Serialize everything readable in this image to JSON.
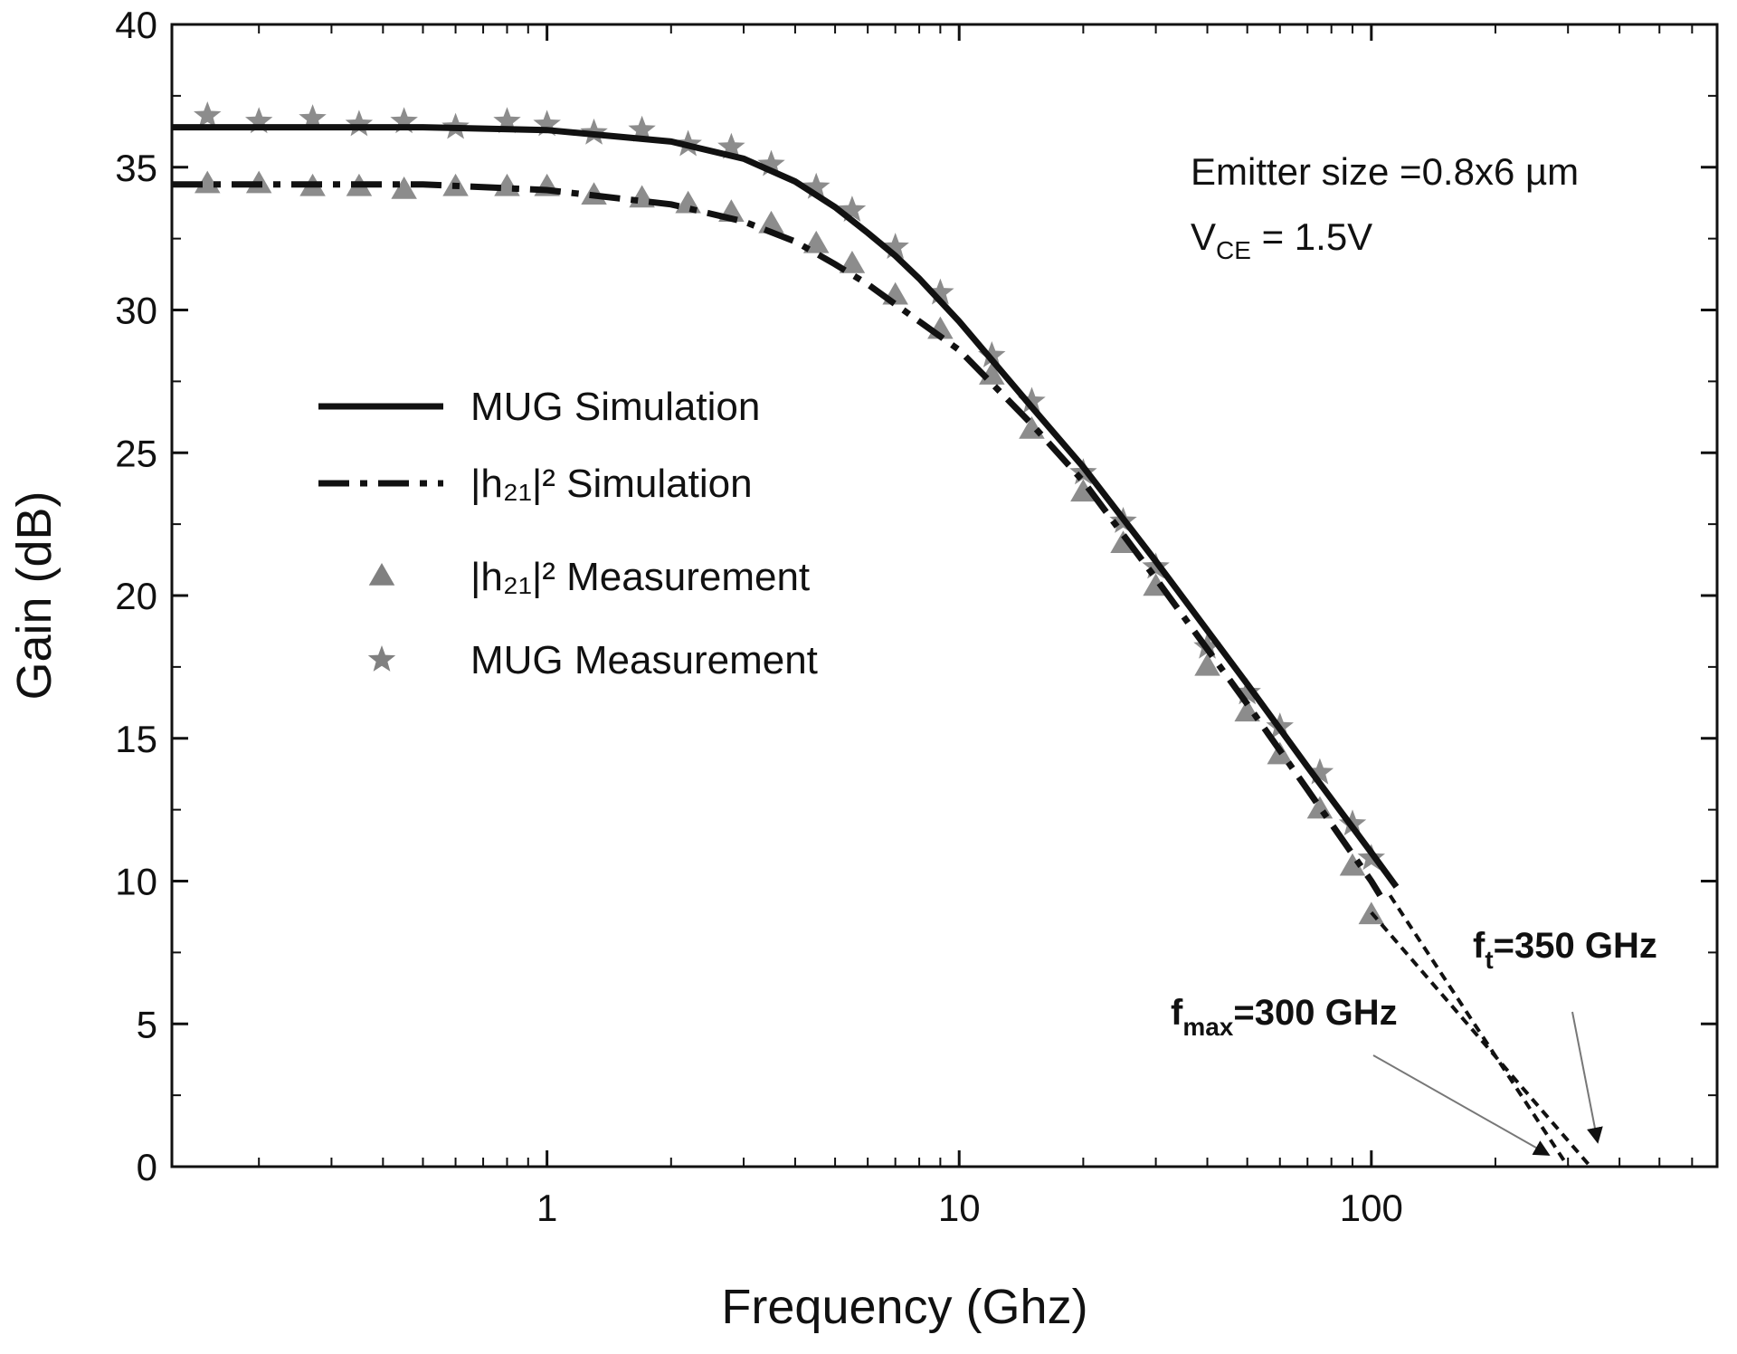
{
  "chart_data": {
    "type": "line",
    "xlabel": "Frequency (Ghz)",
    "ylabel": "Gain (dB)",
    "xscale": "log",
    "xlim": [
      0.123,
      690
    ],
    "xticks": [
      1,
      10,
      100
    ],
    "xminorticks": [
      0.2,
      0.3,
      0.4,
      0.5,
      0.6,
      0.7,
      0.8,
      0.9,
      2,
      3,
      4,
      5,
      6,
      7,
      8,
      9,
      20,
      30,
      40,
      50,
      60,
      70,
      80,
      90,
      200,
      300,
      400,
      500,
      600
    ],
    "ylim": [
      0,
      40
    ],
    "yticks": [
      0,
      5,
      10,
      15,
      20,
      25,
      30,
      35,
      40
    ],
    "yminorticks": [
      2.5,
      7.5,
      12.5,
      17.5,
      22.5,
      27.5,
      32.5,
      37.5
    ],
    "series": [
      {
        "name": "MUG Simulation",
        "style": "solid",
        "color": "#111111",
        "x": [
          0.123,
          0.2,
          0.5,
          1,
          2,
          3,
          4,
          5,
          6,
          7,
          8,
          10,
          15,
          20,
          30,
          50,
          70,
          100,
          115
        ],
        "values": [
          36.4,
          36.4,
          36.4,
          36.3,
          35.9,
          35.3,
          34.5,
          33.6,
          32.7,
          31.9,
          31.1,
          29.6,
          26.6,
          24.5,
          21.2,
          16.9,
          14.0,
          11.0,
          9.8
        ]
      },
      {
        "name": "|h₂₁|² Simulation",
        "style": "dashdot",
        "color": "#111111",
        "x": [
          0.123,
          0.2,
          0.5,
          1,
          2,
          3,
          4,
          5,
          6,
          7,
          8,
          10,
          15,
          20,
          30,
          50,
          70,
          100,
          105
        ],
        "values": [
          34.4,
          34.4,
          34.4,
          34.2,
          33.7,
          33.1,
          32.4,
          31.6,
          30.9,
          30.2,
          29.6,
          28.6,
          26.0,
          24.0,
          20.6,
          16.2,
          13.2,
          10.0,
          9.5
        ]
      },
      {
        "name": "|h₂₁|²  Measurement",
        "style": "triangle",
        "color": "#808080",
        "x": [
          0.15,
          0.2,
          0.27,
          0.35,
          0.45,
          0.6,
          0.8,
          1,
          1.3,
          1.7,
          2.2,
          2.8,
          3.5,
          4.5,
          5.5,
          7,
          9,
          12,
          15,
          20,
          25,
          30,
          40,
          50,
          60,
          75,
          90,
          100
        ],
        "values": [
          34.4,
          34.4,
          34.3,
          34.3,
          34.2,
          34.3,
          34.3,
          34.3,
          34.0,
          33.9,
          33.7,
          33.4,
          33.0,
          32.3,
          31.6,
          30.5,
          29.3,
          27.7,
          25.8,
          23.6,
          21.8,
          20.3,
          17.5,
          15.9,
          14.4,
          12.5,
          10.5,
          8.8
        ]
      },
      {
        "name": "MUG Measurement",
        "style": "star",
        "color": "#808080",
        "x": [
          0.15,
          0.2,
          0.27,
          0.35,
          0.45,
          0.6,
          0.8,
          1,
          1.3,
          1.7,
          2.2,
          2.8,
          3.5,
          4.5,
          5.5,
          7,
          9,
          12,
          15,
          20,
          25,
          30,
          40,
          50,
          60,
          75,
          90,
          100
        ],
        "values": [
          36.8,
          36.6,
          36.7,
          36.5,
          36.6,
          36.4,
          36.6,
          36.5,
          36.2,
          36.3,
          35.8,
          35.7,
          35.1,
          34.3,
          33.5,
          32.2,
          30.6,
          28.4,
          26.8,
          24.3,
          22.6,
          21.0,
          18.2,
          16.6,
          15.4,
          13.8,
          12.0,
          10.8
        ]
      }
    ],
    "extrapolations": [
      {
        "x": [
          111,
          300
        ],
        "values": [
          9.5,
          0
        ]
      },
      {
        "x": [
          100,
          340
        ],
        "values": [
          8.9,
          0
        ]
      }
    ],
    "annotations": {
      "emitter": "Emitter size =0.8x6 µm",
      "vce": {
        "main": "V",
        "sub": "CE",
        "rest": " = 1.5V"
      },
      "fmax": {
        "main": "f",
        "sub": "max",
        "rest": "=300 GHz"
      },
      "ft": {
        "main": "f",
        "sub": "t",
        "rest": "=350 GHz"
      }
    }
  }
}
